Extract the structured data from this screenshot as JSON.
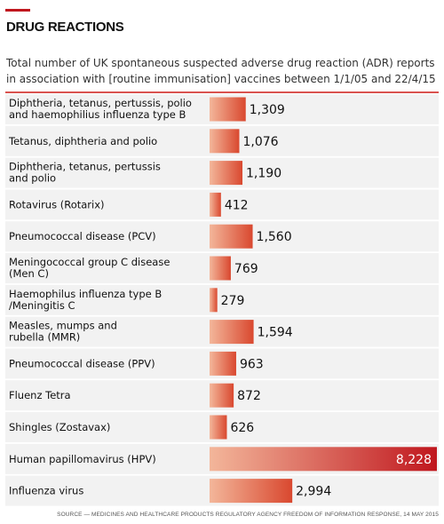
{
  "header": {
    "title": "DRUG REACTIONS",
    "subtitle": "Total number of UK spontaneous suspected adverse drug reaction (ADR) reports in association with [routine immunisation] vaccines between 1/1/05 and 22/4/15"
  },
  "colors": {
    "accent": "#c0171e",
    "bar_light": "#f3b69a",
    "bar_dark": "#d9482f",
    "bar_highlight_dark": "#c0171e",
    "row_bg": "#f2f2f2"
  },
  "chart_data": {
    "type": "bar",
    "orientation": "horizontal",
    "title": "DRUG REACTIONS",
    "categories": [
      "Diphtheria, tetanus, pertussis, polio and haemophilius influenza type B",
      "Tetanus, diphtheria and polio",
      "Diphtheria, tetanus, pertussis and polio",
      "Rotavirus (Rotarix)",
      "Pneumococcal disease (PCV)",
      "Meningococcal group C disease (Men C)",
      "Haemophilus influenza type B /Meningitis C",
      "Measles, mumps and rubella (MMR)",
      "Pneumococcal disease (PPV)",
      "Fluenz Tetra",
      "Shingles (Zostavax)",
      "Human papillomavirus (HPV)",
      "Influenza virus"
    ],
    "label_lines": [
      [
        "Diphtheria, tetanus, pertussis, polio",
        "and haemophilius influenza type B"
      ],
      [
        "Tetanus, diphtheria and polio"
      ],
      [
        "Diphtheria, tetanus, pertussis",
        "and polio"
      ],
      [
        "Rotavirus (Rotarix)"
      ],
      [
        "Pneumococcal disease (PCV)"
      ],
      [
        "Meningococcal group C disease",
        "(Men C)"
      ],
      [
        "Haemophilus influenza type B",
        "/Meningitis C"
      ],
      [
        "Measles, mumps and",
        "rubella (MMR)"
      ],
      [
        "Pneumococcal disease (PPV)"
      ],
      [
        "Fluenz Tetra"
      ],
      [
        "Shingles (Zostavax)"
      ],
      [
        "Human papillomavirus (HPV)"
      ],
      [
        "Influenza virus"
      ]
    ],
    "values": [
      1309,
      1076,
      1190,
      412,
      1560,
      769,
      279,
      1594,
      963,
      872,
      626,
      8228,
      2994
    ],
    "value_labels": [
      "1,309",
      "1,076",
      "1,190",
      "412",
      "1,560",
      "769",
      "279",
      "1,594",
      "963",
      "872",
      "626",
      "8,228",
      "2,994"
    ],
    "xlim": [
      0,
      8228
    ],
    "grid": false,
    "legend": "none"
  },
  "footer": {
    "source": "SOURCE — MEDICINES AND HEALTHCARE PRODUCTS REGULATORY AGENCY FREEDOM OF INFORMATION RESPONSE, 14 MAY 2015"
  }
}
